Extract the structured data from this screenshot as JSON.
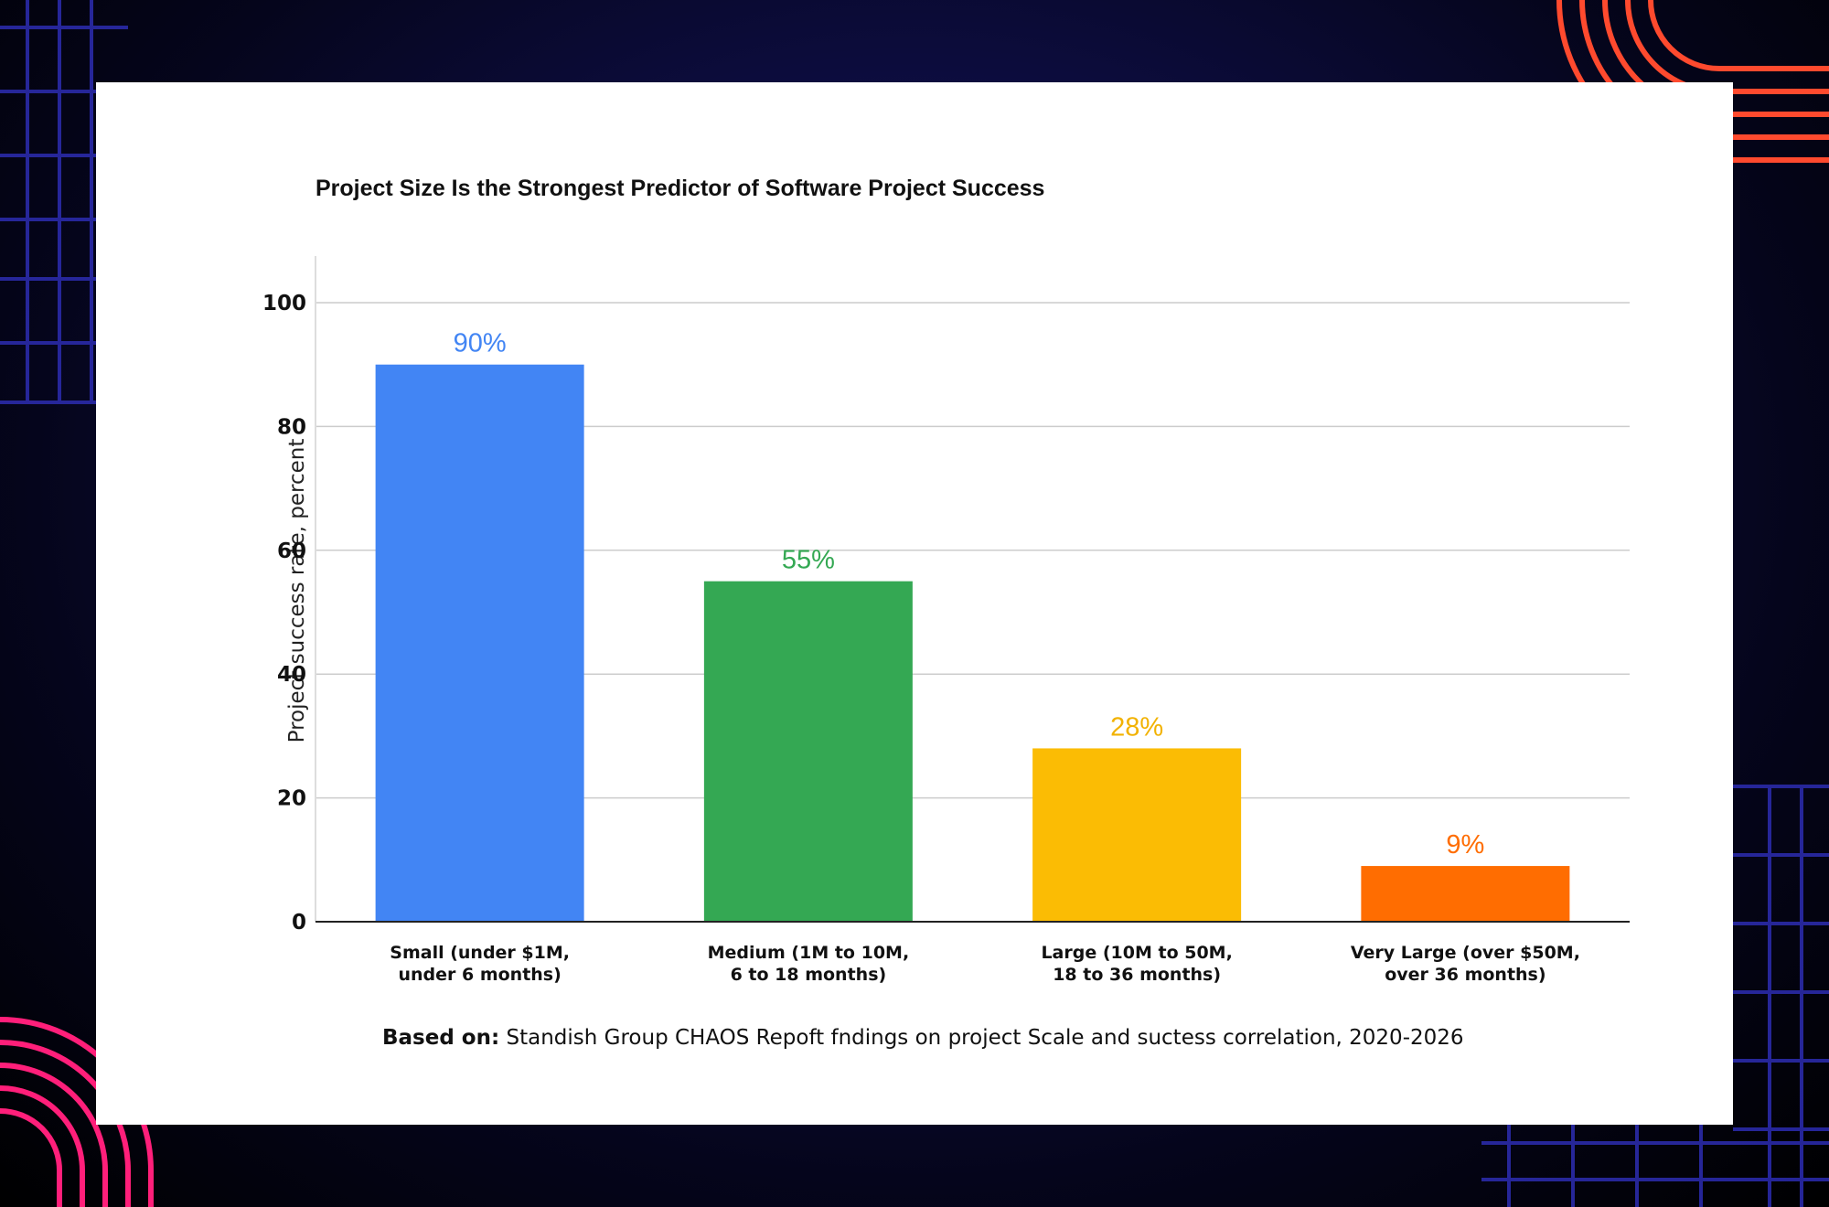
{
  "chart_data": {
    "type": "bar",
    "title": "Project Size Is the Strongest Predictor of Software Project Success",
    "ylabel": "Project success rate, percent",
    "xlabel": "",
    "ylim": [
      0,
      100
    ],
    "yticks": [
      0,
      20,
      40,
      60,
      80,
      100
    ],
    "grid": true,
    "categories": [
      [
        "Small (under $1M,",
        "under 6 months)"
      ],
      [
        "Medium (1M to 10M,",
        "6 to 18 months)"
      ],
      [
        "Large (10M to 50M,",
        "18 to 36 months)"
      ],
      [
        "Very Large (over $50M,",
        "over 36 months)"
      ]
    ],
    "values": [
      90,
      55,
      28,
      9
    ],
    "data_labels": [
      "90%",
      "55%",
      "28%",
      "9%"
    ],
    "colors": [
      "#4285F4",
      "#34A853",
      "#FBBC04",
      "#FF6D01"
    ],
    "label_colors": [
      "#4285F4",
      "#34A853",
      "#F2B200",
      "#FF6D01"
    ]
  },
  "source": {
    "prefix": "Based on:",
    "text": " Standish Group CHAOS Repoft fndings on project Scale and suctess correlation, 2020-2026"
  },
  "colors": {
    "page_background": "#0d0d40",
    "card_background": "#ffffff",
    "gridline": "#cccccc",
    "axis": "#222222",
    "decor_orange": "#ff4a2e",
    "decor_pink": "#ff1f7a",
    "decor_grid": "#2a2aa8"
  }
}
